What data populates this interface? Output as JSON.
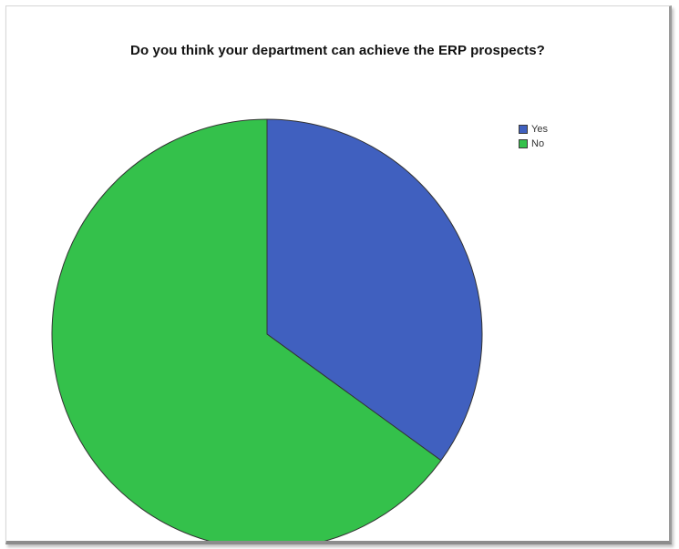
{
  "chart_data": {
    "type": "pie",
    "title": "Do you think your department can achieve the ERP prospects?",
    "slices": [
      {
        "label": "Yes",
        "value": 35.0,
        "color": "#4060bf"
      },
      {
        "label": "No",
        "value": 65.0,
        "color": "#34c14b"
      }
    ],
    "start_angle_deg": 0,
    "direction": "clockwise",
    "legend_position": "top-right"
  }
}
